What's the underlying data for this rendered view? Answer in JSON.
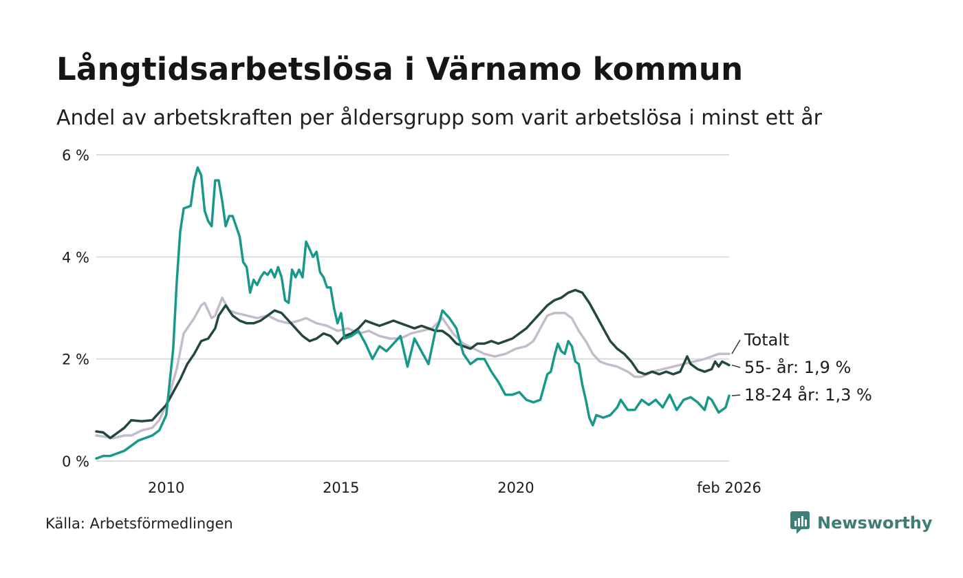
{
  "title": "Långtidsarbetslösa i Värnamo kommun",
  "subtitle": "Andel av arbetskraften per åldersgrupp som varit arbetslösa i minst ett år",
  "source": "Källa: Arbetsförmedlingen",
  "brand": "Newsworthy",
  "colors": {
    "total": "#c2bccb",
    "age55": "#23473f",
    "age1824": "#18988a",
    "grid": "#dcdcdc",
    "brand": "#3d7e76"
  },
  "chart_data": {
    "type": "line",
    "title": "Långtidsarbetslösa i Värnamo kommun",
    "ylabel": "",
    "xlabel": "",
    "ylim": [
      0,
      6
    ],
    "xlim": [
      2008.0,
      2026.1
    ],
    "yticks": [
      {
        "value": 0,
        "label": "0 %"
      },
      {
        "value": 2,
        "label": "2 %"
      },
      {
        "value": 4,
        "label": "4 %"
      },
      {
        "value": 6,
        "label": "6 %"
      }
    ],
    "xticks": [
      {
        "value": 2010,
        "label": "2010"
      },
      {
        "value": 2015,
        "label": "2015"
      },
      {
        "value": 2020,
        "label": "2020"
      },
      {
        "value": 2026.1,
        "label": "feb 2026"
      }
    ],
    "series": [
      {
        "key": "total",
        "name": "Totalt",
        "label": "Totalt",
        "color": "#c2bccb",
        "points": [
          [
            2008.0,
            0.5
          ],
          [
            2008.5,
            0.45
          ],
          [
            2008.8,
            0.5
          ],
          [
            2009.0,
            0.5
          ],
          [
            2009.3,
            0.6
          ],
          [
            2009.6,
            0.65
          ],
          [
            2009.8,
            0.8
          ],
          [
            2010.0,
            1.1
          ],
          [
            2010.3,
            1.8
          ],
          [
            2010.5,
            2.5
          ],
          [
            2010.8,
            2.8
          ],
          [
            2011.0,
            3.05
          ],
          [
            2011.1,
            3.1
          ],
          [
            2011.3,
            2.8
          ],
          [
            2011.4,
            2.85
          ],
          [
            2011.6,
            3.2
          ],
          [
            2011.8,
            2.95
          ],
          [
            2012.0,
            2.9
          ],
          [
            2012.3,
            2.85
          ],
          [
            2012.6,
            2.8
          ],
          [
            2012.9,
            2.85
          ],
          [
            2013.2,
            2.75
          ],
          [
            2013.5,
            2.7
          ],
          [
            2013.8,
            2.75
          ],
          [
            2014.0,
            2.8
          ],
          [
            2014.3,
            2.7
          ],
          [
            2014.6,
            2.65
          ],
          [
            2014.9,
            2.55
          ],
          [
            2015.2,
            2.6
          ],
          [
            2015.5,
            2.5
          ],
          [
            2015.8,
            2.55
          ],
          [
            2016.1,
            2.45
          ],
          [
            2016.4,
            2.4
          ],
          [
            2016.7,
            2.4
          ],
          [
            2017.0,
            2.5
          ],
          [
            2017.3,
            2.55
          ],
          [
            2017.6,
            2.6
          ],
          [
            2017.9,
            2.8
          ],
          [
            2018.2,
            2.5
          ],
          [
            2018.5,
            2.3
          ],
          [
            2018.8,
            2.2
          ],
          [
            2019.1,
            2.1
          ],
          [
            2019.4,
            2.05
          ],
          [
            2019.7,
            2.1
          ],
          [
            2020.0,
            2.2
          ],
          [
            2020.3,
            2.25
          ],
          [
            2020.5,
            2.35
          ],
          [
            2020.7,
            2.6
          ],
          [
            2020.9,
            2.85
          ],
          [
            2021.1,
            2.9
          ],
          [
            2021.4,
            2.9
          ],
          [
            2021.6,
            2.8
          ],
          [
            2021.8,
            2.55
          ],
          [
            2022.0,
            2.35
          ],
          [
            2022.2,
            2.1
          ],
          [
            2022.4,
            1.95
          ],
          [
            2022.6,
            1.9
          ],
          [
            2022.9,
            1.85
          ],
          [
            2023.2,
            1.75
          ],
          [
            2023.4,
            1.65
          ],
          [
            2023.6,
            1.65
          ],
          [
            2023.9,
            1.75
          ],
          [
            2024.2,
            1.8
          ],
          [
            2024.5,
            1.85
          ],
          [
            2024.8,
            1.9
          ],
          [
            2025.1,
            1.95
          ],
          [
            2025.4,
            2.0
          ],
          [
            2025.6,
            2.05
          ],
          [
            2025.8,
            2.1
          ],
          [
            2026.1,
            2.1
          ]
        ]
      },
      {
        "key": "age55",
        "name": "55- år",
        "label": "55- år: 1,9 %",
        "last_value": 1.9,
        "color": "#23473f",
        "points": [
          [
            2008.0,
            0.58
          ],
          [
            2008.2,
            0.56
          ],
          [
            2008.4,
            0.45
          ],
          [
            2008.6,
            0.55
          ],
          [
            2008.8,
            0.65
          ],
          [
            2009.0,
            0.8
          ],
          [
            2009.3,
            0.78
          ],
          [
            2009.6,
            0.8
          ],
          [
            2009.8,
            0.95
          ],
          [
            2010.0,
            1.1
          ],
          [
            2010.2,
            1.35
          ],
          [
            2010.4,
            1.6
          ],
          [
            2010.6,
            1.9
          ],
          [
            2010.8,
            2.1
          ],
          [
            2011.0,
            2.35
          ],
          [
            2011.2,
            2.4
          ],
          [
            2011.4,
            2.6
          ],
          [
            2011.5,
            2.85
          ],
          [
            2011.7,
            3.05
          ],
          [
            2011.9,
            2.85
          ],
          [
            2012.1,
            2.75
          ],
          [
            2012.3,
            2.7
          ],
          [
            2012.5,
            2.7
          ],
          [
            2012.7,
            2.75
          ],
          [
            2012.9,
            2.85
          ],
          [
            2013.1,
            2.95
          ],
          [
            2013.3,
            2.9
          ],
          [
            2013.5,
            2.75
          ],
          [
            2013.7,
            2.6
          ],
          [
            2013.9,
            2.45
          ],
          [
            2014.1,
            2.35
          ],
          [
            2014.3,
            2.4
          ],
          [
            2014.5,
            2.5
          ],
          [
            2014.7,
            2.45
          ],
          [
            2014.9,
            2.3
          ],
          [
            2015.1,
            2.45
          ],
          [
            2015.3,
            2.5
          ],
          [
            2015.5,
            2.6
          ],
          [
            2015.7,
            2.75
          ],
          [
            2015.9,
            2.7
          ],
          [
            2016.1,
            2.65
          ],
          [
            2016.3,
            2.7
          ],
          [
            2016.5,
            2.75
          ],
          [
            2016.7,
            2.7
          ],
          [
            2016.9,
            2.65
          ],
          [
            2017.1,
            2.6
          ],
          [
            2017.3,
            2.65
          ],
          [
            2017.5,
            2.6
          ],
          [
            2017.7,
            2.55
          ],
          [
            2017.9,
            2.55
          ],
          [
            2018.1,
            2.45
          ],
          [
            2018.3,
            2.3
          ],
          [
            2018.5,
            2.25
          ],
          [
            2018.7,
            2.2
          ],
          [
            2018.9,
            2.3
          ],
          [
            2019.1,
            2.3
          ],
          [
            2019.3,
            2.35
          ],
          [
            2019.5,
            2.3
          ],
          [
            2019.7,
            2.35
          ],
          [
            2019.9,
            2.4
          ],
          [
            2020.1,
            2.5
          ],
          [
            2020.3,
            2.6
          ],
          [
            2020.5,
            2.75
          ],
          [
            2020.7,
            2.9
          ],
          [
            2020.9,
            3.05
          ],
          [
            2021.1,
            3.15
          ],
          [
            2021.3,
            3.2
          ],
          [
            2021.5,
            3.3
          ],
          [
            2021.7,
            3.35
          ],
          [
            2021.9,
            3.3
          ],
          [
            2022.1,
            3.1
          ],
          [
            2022.3,
            2.85
          ],
          [
            2022.5,
            2.6
          ],
          [
            2022.7,
            2.35
          ],
          [
            2022.9,
            2.2
          ],
          [
            2023.1,
            2.1
          ],
          [
            2023.3,
            1.95
          ],
          [
            2023.5,
            1.75
          ],
          [
            2023.7,
            1.7
          ],
          [
            2023.9,
            1.75
          ],
          [
            2024.1,
            1.7
          ],
          [
            2024.3,
            1.75
          ],
          [
            2024.5,
            1.7
          ],
          [
            2024.7,
            1.75
          ],
          [
            2024.9,
            2.05
          ],
          [
            2025.0,
            1.9
          ],
          [
            2025.2,
            1.8
          ],
          [
            2025.4,
            1.75
          ],
          [
            2025.6,
            1.8
          ],
          [
            2025.7,
            1.95
          ],
          [
            2025.8,
            1.85
          ],
          [
            2025.9,
            1.95
          ],
          [
            2026.1,
            1.88
          ]
        ]
      },
      {
        "key": "age1824",
        "name": "18-24 år",
        "label": "18-24 år: 1,3 %",
        "last_value": 1.3,
        "color": "#18988a",
        "points": [
          [
            2008.0,
            0.05
          ],
          [
            2008.2,
            0.1
          ],
          [
            2008.4,
            0.1
          ],
          [
            2008.6,
            0.15
          ],
          [
            2008.8,
            0.2
          ],
          [
            2009.0,
            0.3
          ],
          [
            2009.2,
            0.4
          ],
          [
            2009.4,
            0.45
          ],
          [
            2009.6,
            0.5
          ],
          [
            2009.8,
            0.6
          ],
          [
            2010.0,
            0.9
          ],
          [
            2010.2,
            2.2
          ],
          [
            2010.3,
            3.5
          ],
          [
            2010.4,
            4.5
          ],
          [
            2010.5,
            4.95
          ],
          [
            2010.7,
            5.0
          ],
          [
            2010.8,
            5.5
          ],
          [
            2010.9,
            5.75
          ],
          [
            2011.0,
            5.6
          ],
          [
            2011.1,
            4.9
          ],
          [
            2011.2,
            4.7
          ],
          [
            2011.3,
            4.6
          ],
          [
            2011.4,
            5.5
          ],
          [
            2011.5,
            5.5
          ],
          [
            2011.6,
            5.1
          ],
          [
            2011.7,
            4.6
          ],
          [
            2011.8,
            4.8
          ],
          [
            2011.9,
            4.8
          ],
          [
            2012.0,
            4.6
          ],
          [
            2012.1,
            4.4
          ],
          [
            2012.2,
            3.9
          ],
          [
            2012.3,
            3.8
          ],
          [
            2012.4,
            3.3
          ],
          [
            2012.5,
            3.55
          ],
          [
            2012.6,
            3.45
          ],
          [
            2012.7,
            3.6
          ],
          [
            2012.8,
            3.7
          ],
          [
            2012.9,
            3.65
          ],
          [
            2013.0,
            3.75
          ],
          [
            2013.1,
            3.6
          ],
          [
            2013.2,
            3.8
          ],
          [
            2013.3,
            3.6
          ],
          [
            2013.4,
            3.15
          ],
          [
            2013.5,
            3.1
          ],
          [
            2013.6,
            3.75
          ],
          [
            2013.7,
            3.6
          ],
          [
            2013.8,
            3.75
          ],
          [
            2013.9,
            3.6
          ],
          [
            2014.0,
            4.3
          ],
          [
            2014.1,
            4.15
          ],
          [
            2014.2,
            4.0
          ],
          [
            2014.3,
            4.1
          ],
          [
            2014.4,
            3.7
          ],
          [
            2014.5,
            3.6
          ],
          [
            2014.6,
            3.4
          ],
          [
            2014.7,
            3.4
          ],
          [
            2014.8,
            3.0
          ],
          [
            2014.9,
            2.7
          ],
          [
            2015.0,
            2.9
          ],
          [
            2015.1,
            2.4
          ],
          [
            2015.3,
            2.45
          ],
          [
            2015.5,
            2.55
          ],
          [
            2015.7,
            2.3
          ],
          [
            2015.9,
            2.0
          ],
          [
            2016.1,
            2.25
          ],
          [
            2016.3,
            2.15
          ],
          [
            2016.5,
            2.3
          ],
          [
            2016.7,
            2.45
          ],
          [
            2016.9,
            1.85
          ],
          [
            2017.1,
            2.4
          ],
          [
            2017.3,
            2.15
          ],
          [
            2017.5,
            1.9
          ],
          [
            2017.7,
            2.55
          ],
          [
            2017.8,
            2.7
          ],
          [
            2017.9,
            2.95
          ],
          [
            2018.1,
            2.8
          ],
          [
            2018.3,
            2.6
          ],
          [
            2018.5,
            2.1
          ],
          [
            2018.7,
            1.9
          ],
          [
            2018.9,
            2.0
          ],
          [
            2019.1,
            2.0
          ],
          [
            2019.3,
            1.75
          ],
          [
            2019.5,
            1.55
          ],
          [
            2019.7,
            1.3
          ],
          [
            2019.9,
            1.3
          ],
          [
            2020.1,
            1.35
          ],
          [
            2020.3,
            1.2
          ],
          [
            2020.5,
            1.15
          ],
          [
            2020.7,
            1.2
          ],
          [
            2020.9,
            1.7
          ],
          [
            2021.0,
            1.75
          ],
          [
            2021.1,
            2.05
          ],
          [
            2021.2,
            2.3
          ],
          [
            2021.3,
            2.15
          ],
          [
            2021.4,
            2.1
          ],
          [
            2021.5,
            2.35
          ],
          [
            2021.6,
            2.25
          ],
          [
            2021.7,
            1.95
          ],
          [
            2021.8,
            1.9
          ],
          [
            2021.9,
            1.5
          ],
          [
            2022.0,
            1.2
          ],
          [
            2022.1,
            0.85
          ],
          [
            2022.2,
            0.7
          ],
          [
            2022.3,
            0.9
          ],
          [
            2022.5,
            0.85
          ],
          [
            2022.7,
            0.9
          ],
          [
            2022.9,
            1.05
          ],
          [
            2023.0,
            1.2
          ],
          [
            2023.2,
            1.0
          ],
          [
            2023.4,
            1.0
          ],
          [
            2023.6,
            1.2
          ],
          [
            2023.8,
            1.1
          ],
          [
            2024.0,
            1.2
          ],
          [
            2024.2,
            1.05
          ],
          [
            2024.4,
            1.3
          ],
          [
            2024.6,
            1.0
          ],
          [
            2024.8,
            1.2
          ],
          [
            2025.0,
            1.25
          ],
          [
            2025.2,
            1.15
          ],
          [
            2025.4,
            1.0
          ],
          [
            2025.5,
            1.25
          ],
          [
            2025.6,
            1.2
          ],
          [
            2025.8,
            0.95
          ],
          [
            2025.9,
            1.0
          ],
          [
            2026.0,
            1.05
          ],
          [
            2026.1,
            1.28
          ]
        ]
      }
    ]
  }
}
